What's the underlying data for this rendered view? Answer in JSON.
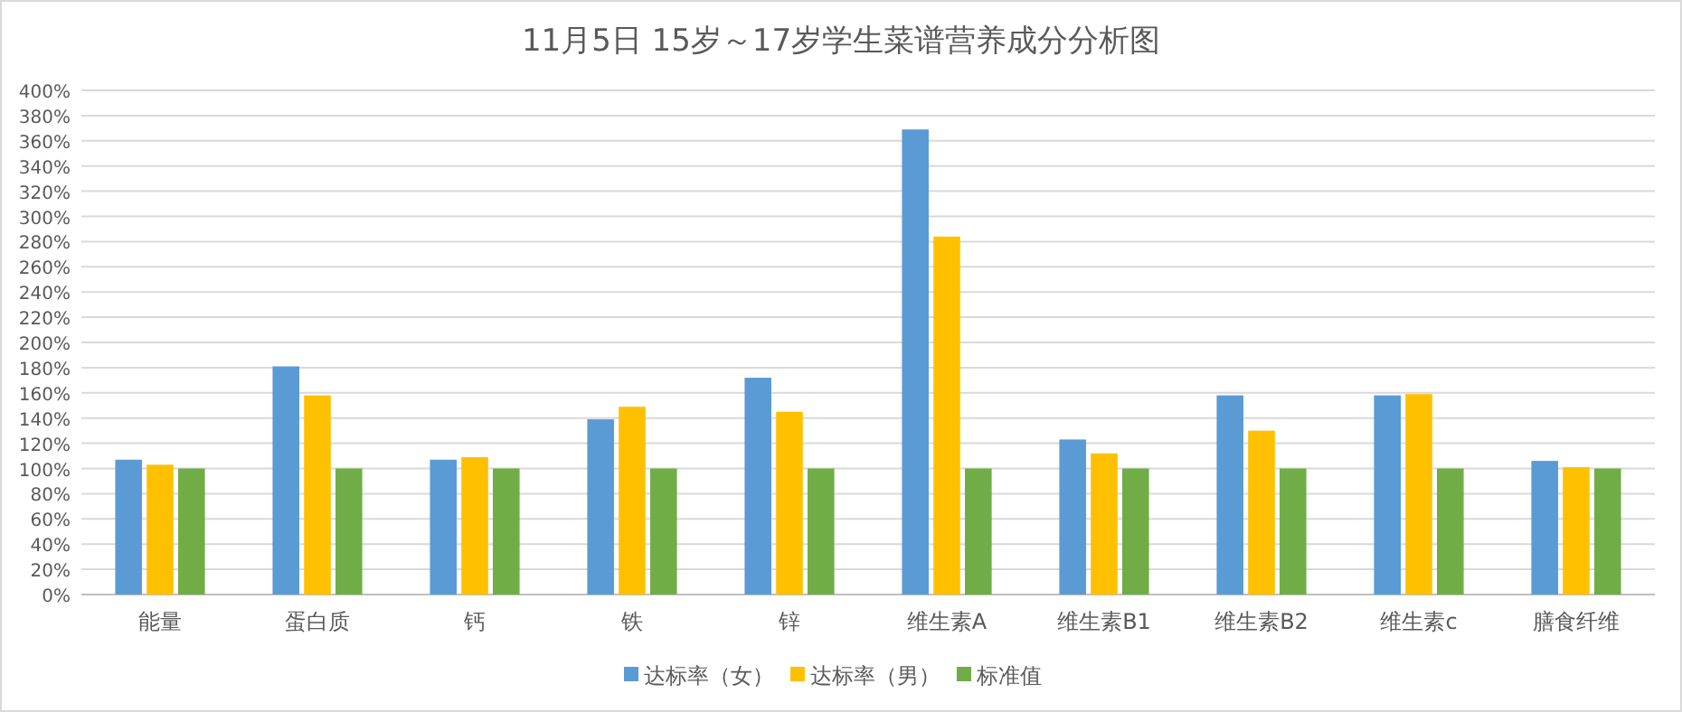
{
  "chart_data": {
    "type": "bar",
    "title": "11月5日 15岁～17岁学生菜谱营养成分分析图",
    "categories": [
      "能量",
      "蛋白质",
      "钙",
      "铁",
      "锌",
      "维生素A",
      "维生素B1",
      "维生素B2",
      "维生素c",
      "膳食纤维"
    ],
    "series": [
      {
        "name": "达标率（女）",
        "color": "#5b9bd5",
        "values": [
          107,
          181,
          107,
          139,
          172,
          369,
          123,
          158,
          158,
          106
        ]
      },
      {
        "name": "达标率（男）",
        "color": "#ffc000",
        "values": [
          103,
          158,
          109,
          149,
          145,
          284,
          112,
          130,
          159,
          101
        ]
      },
      {
        "name": "标准值",
        "color": "#70ad47",
        "values": [
          100,
          100,
          100,
          100,
          100,
          100,
          100,
          100,
          100,
          100
        ]
      }
    ],
    "ylim": [
      0,
      400
    ],
    "yticks": [
      {
        "value": 0,
        "label": "0%"
      },
      {
        "value": 20,
        "label": "20%"
      },
      {
        "value": 40,
        "label": "40%"
      },
      {
        "value": 60,
        "label": "60%"
      },
      {
        "value": 80,
        "label": "80%"
      },
      {
        "value": 100,
        "label": "100%"
      },
      {
        "value": 120,
        "label": "120%"
      },
      {
        "value": 140,
        "label": "140%"
      },
      {
        "value": 160,
        "label": "160%"
      },
      {
        "value": 180,
        "label": "180%"
      },
      {
        "value": 200,
        "label": "200%"
      },
      {
        "value": 220,
        "label": "220%"
      },
      {
        "value": 240,
        "label": "240%"
      },
      {
        "value": 260,
        "label": "260%"
      },
      {
        "value": 280,
        "label": "280%"
      },
      {
        "value": 300,
        "label": "300%"
      },
      {
        "value": 320,
        "label": "320%"
      },
      {
        "value": 340,
        "label": "340%"
      },
      {
        "value": 360,
        "label": "360%"
      },
      {
        "value": 380,
        "label": "380%"
      },
      {
        "value": 400,
        "label": "400%"
      }
    ],
    "grid": "y",
    "legend": "bottom"
  }
}
